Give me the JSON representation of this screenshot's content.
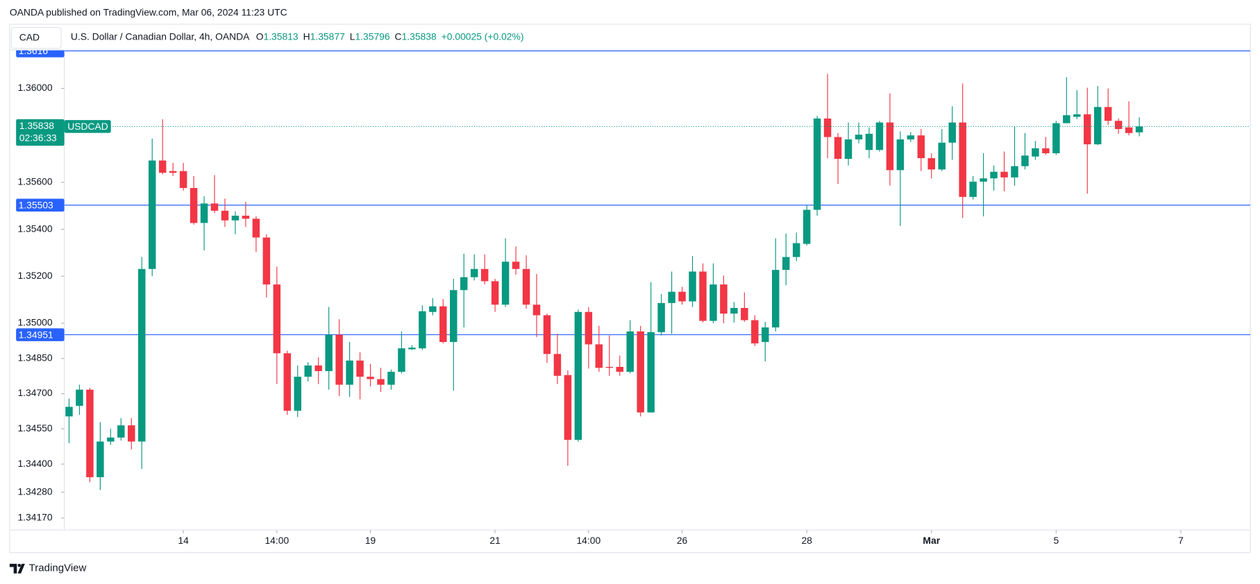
{
  "header": {
    "published": "OANDA published on TradingView.com, Mar 06, 2024 11:23 UTC",
    "symbol_box": "CAD",
    "instrument": "U.S. Dollar / Canadian Dollar, 4h, OANDA",
    "keys": [
      "O",
      "H",
      "L",
      "C"
    ],
    "change": "+0.00025 (+0.02%)"
  },
  "footer": {
    "brand": "TradingView"
  },
  "chart_data": {
    "type": "candlestick",
    "series": {
      "name": "USDCAD",
      "up_color": "#089981",
      "down_color": "#f23645",
      "open": [
        1.34603,
        1.34648,
        1.34717,
        1.34344,
        1.34496,
        1.34513,
        1.34565,
        1.34496,
        1.35231,
        1.35693,
        1.35648,
        1.35648,
        1.35576,
        1.35427,
        1.3551,
        1.35479,
        1.35438,
        1.35458,
        1.35445,
        1.35365,
        1.35165,
        1.34872,
        1.34627,
        1.34772,
        1.3482,
        1.34796,
        1.34951,
        1.34738,
        1.34841,
        1.34772,
        1.34762,
        1.34738,
        1.34793,
        1.34889,
        1.34893,
        1.35048,
        1.35072,
        1.3492,
        1.35141,
        1.35196,
        1.35231,
        1.35179,
        1.35079,
        1.35262,
        1.35231,
        1.35079,
        1.35034,
        1.34869,
        1.34779,
        1.34503,
        1.35048,
        1.3491,
        1.34814,
        1.34814,
        1.34793,
        1.34965,
        1.3462,
        1.34962,
        1.35086,
        1.35134,
        1.35093,
        1.3522,
        1.3501,
        1.35165,
        1.35041,
        1.35065,
        1.35013,
        1.3492,
        1.34982,
        1.35227,
        1.35282,
        1.35338,
        1.35483,
        1.35872,
        1.35793,
        1.357,
        1.35783,
        1.35738,
        1.35738,
        1.35855,
        1.35652,
        1.35783,
        1.358,
        1.35703,
        1.35655,
        1.35769,
        1.35855,
        1.35538,
        1.35603,
        1.35617,
        1.35645,
        1.35621,
        1.35669,
        1.3571,
        1.35745,
        1.35724,
        1.35852,
        1.35879,
        1.3589,
        1.35762,
        1.35921,
        1.35862,
        1.35834,
        1.35813
      ],
      "high": [
        1.34679,
        1.34738,
        1.34724,
        1.34579,
        1.34551,
        1.34596,
        1.34596,
        1.35282,
        1.35786,
        1.35869,
        1.35683,
        1.35683,
        1.35627,
        1.35541,
        1.35631,
        1.35531,
        1.35476,
        1.35517,
        1.35455,
        1.35379,
        1.35241,
        1.34883,
        1.3482,
        1.34834,
        1.34855,
        1.35069,
        1.35017,
        1.3492,
        1.34876,
        1.34827,
        1.3481,
        1.34803,
        1.34965,
        1.34907,
        1.35076,
        1.35107,
        1.35103,
        1.35189,
        1.35296,
        1.35293,
        1.35293,
        1.35189,
        1.35362,
        1.35327,
        1.35289,
        1.3521,
        1.35041,
        1.34955,
        1.348,
        1.35058,
        1.35069,
        1.34989,
        1.34948,
        1.34862,
        1.35013,
        1.34989,
        1.35175,
        1.35124,
        1.3522,
        1.35155,
        1.35286,
        1.35255,
        1.35255,
        1.35203,
        1.3509,
        1.35131,
        1.35034,
        1.35006,
        1.35362,
        1.35382,
        1.35386,
        1.35503,
        1.35883,
        1.36062,
        1.3581,
        1.35855,
        1.35855,
        1.35834,
        1.35862,
        1.35979,
        1.35817,
        1.35814,
        1.35827,
        1.35724,
        1.35827,
        1.35924,
        1.36021,
        1.35627,
        1.35724,
        1.35672,
        1.35731,
        1.35838,
        1.3581,
        1.35776,
        1.35793,
        1.35862,
        1.36048,
        1.35993,
        1.36003,
        1.3601,
        1.36,
        1.35872,
        1.35945,
        1.35877
      ],
      "low": [
        1.34489,
        1.3461,
        1.34323,
        1.34289,
        1.34482,
        1.345,
        1.34462,
        1.34379,
        1.352,
        1.35634,
        1.35627,
        1.35565,
        1.3542,
        1.3531,
        1.35469,
        1.3541,
        1.35379,
        1.3541,
        1.35303,
        1.3511,
        1.34741,
        1.3461,
        1.346,
        1.34752,
        1.34741,
        1.34717,
        1.3469,
        1.34686,
        1.34676,
        1.34731,
        1.34707,
        1.34717,
        1.34786,
        1.34886,
        1.34886,
        1.35034,
        1.34914,
        1.34713,
        1.34982,
        1.35182,
        1.35165,
        1.35048,
        1.35069,
        1.35207,
        1.35062,
        1.34941,
        1.34831,
        1.34741,
        1.34393,
        1.34496,
        1.34807,
        1.34793,
        1.34776,
        1.34776,
        1.34786,
        1.34603,
        1.3462,
        1.34948,
        1.34955,
        1.35079,
        1.35069,
        1.35003,
        1.35,
        1.35,
        1.35003,
        1.35006,
        1.34903,
        1.34837,
        1.34965,
        1.35162,
        1.35265,
        1.35331,
        1.35458,
        1.35703,
        1.35593,
        1.35672,
        1.35766,
        1.35703,
        1.35731,
        1.35586,
        1.35414,
        1.35772,
        1.35648,
        1.35617,
        1.35648,
        1.35696,
        1.35448,
        1.35527,
        1.35455,
        1.35565,
        1.35562,
        1.35586,
        1.35655,
        1.35696,
        1.35717,
        1.35717,
        1.35852,
        1.35869,
        1.35552,
        1.35759,
        1.35845,
        1.35807,
        1.358,
        1.35796
      ],
      "close": [
        1.34644,
        1.34717,
        1.34344,
        1.34496,
        1.34513,
        1.34565,
        1.34496,
        1.35231,
        1.35693,
        1.35641,
        1.35641,
        1.35576,
        1.35427,
        1.3551,
        1.35479,
        1.35438,
        1.35458,
        1.35445,
        1.35365,
        1.35165,
        1.34872,
        1.34627,
        1.34772,
        1.3482,
        1.34796,
        1.34951,
        1.34738,
        1.34841,
        1.34772,
        1.34762,
        1.34738,
        1.34793,
        1.34893,
        1.34896,
        1.35051,
        1.35072,
        1.3492,
        1.35141,
        1.35196,
        1.35231,
        1.35179,
        1.35079,
        1.35262,
        1.35231,
        1.35079,
        1.35034,
        1.34869,
        1.34776,
        1.34503,
        1.35048,
        1.3491,
        1.3481,
        1.3481,
        1.34793,
        1.34965,
        1.3462,
        1.34962,
        1.35086,
        1.35134,
        1.35093,
        1.3522,
        1.3501,
        1.35165,
        1.35041,
        1.35065,
        1.35013,
        1.34914,
        1.34982,
        1.35227,
        1.35282,
        1.35341,
        1.35483,
        1.35872,
        1.35793,
        1.357,
        1.35783,
        1.35803,
        1.35807,
        1.35855,
        1.35652,
        1.35783,
        1.358,
        1.35703,
        1.35655,
        1.35769,
        1.35855,
        1.35538,
        1.35603,
        1.35617,
        1.35645,
        1.35621,
        1.35669,
        1.35714,
        1.35745,
        1.35724,
        1.35852,
        1.35886,
        1.3589,
        1.35762,
        1.35921,
        1.35862,
        1.35827,
        1.3581,
        1.35838
      ]
    },
    "ylim": [
      1.34119,
      1.36164
    ],
    "yticks": [
      {
        "value": 1.36,
        "label": "1.36000"
      },
      {
        "value": 1.356,
        "label": "1.35600"
      },
      {
        "value": 1.354,
        "label": "1.35400"
      },
      {
        "value": 1.352,
        "label": "1.35200"
      },
      {
        "value": 1.35,
        "label": "1.35000"
      },
      {
        "value": 1.3485,
        "label": "1.34850"
      },
      {
        "value": 1.347,
        "label": "1.34700"
      },
      {
        "value": 1.3455,
        "label": "1.34550"
      },
      {
        "value": 1.344,
        "label": "1.34400"
      },
      {
        "value": 1.3428,
        "label": "1.34280"
      },
      {
        "value": 1.3417,
        "label": "1.34170"
      }
    ],
    "xlim": [
      -0.46,
      113.69
    ],
    "xticks": [
      {
        "value": 11,
        "label": "14"
      },
      {
        "value": 20,
        "label": "14:00"
      },
      {
        "value": 29,
        "label": "19"
      },
      {
        "value": 41,
        "label": "21"
      },
      {
        "value": 50,
        "label": "14:00"
      },
      {
        "value": 59,
        "label": "26"
      },
      {
        "value": 71,
        "label": "28"
      },
      {
        "value": 83,
        "label": "Mar"
      },
      {
        "value": 95,
        "label": "5"
      },
      {
        "value": 107,
        "label": "7"
      }
    ],
    "lines": [
      {
        "value": 1.3616,
        "color": "#2962ff"
      },
      {
        "value": 1.35503,
        "color": "#2962ff"
      },
      {
        "value": 1.34951,
        "color": "#2962ff"
      }
    ],
    "countdown": "02:36:33",
    "grid": false
  }
}
